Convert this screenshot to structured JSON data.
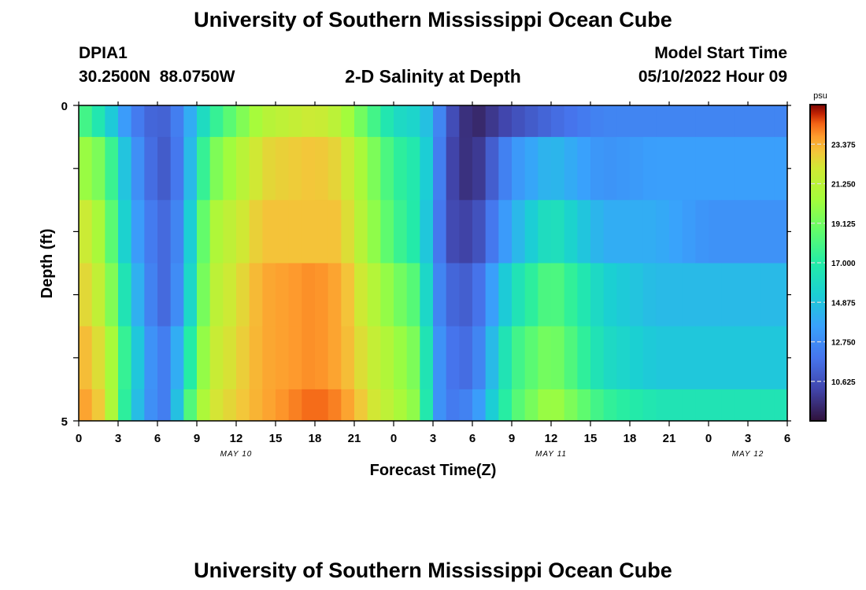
{
  "header": {
    "title": "University of Southern Mississippi Ocean Cube",
    "station_id": "DPIA1",
    "coords": "30.2500N  88.0750W",
    "plot_title": "2-D Salinity at Depth",
    "model_start_label": "Model Start Time",
    "model_start_value": "05/10/2022 Hour 09"
  },
  "footer": {
    "title": "University of Southern Mississippi Ocean Cube"
  },
  "colors": {
    "background": "#ffffff",
    "axis": "#000000",
    "tick_dash": "#dddddd"
  },
  "chart_data": {
    "type": "heatmap",
    "title": "2-D Salinity at Depth",
    "xlabel": "Forecast Time(Z)",
    "ylabel": "Depth (ft)",
    "y_ticks": [
      "0",
      "5"
    ],
    "y_range": [
      0,
      5
    ],
    "x_ticks": [
      "0",
      "3",
      "6",
      "9",
      "12",
      "15",
      "18",
      "21",
      "0",
      "3",
      "6",
      "9",
      "12",
      "15",
      "18",
      "21",
      "0",
      "3",
      "6"
    ],
    "x_range_hours": [
      0,
      54
    ],
    "date_labels": [
      {
        "hour": 12,
        "label": "MAY 10"
      },
      {
        "hour": 36,
        "label": "MAY 11"
      },
      {
        "hour": 51,
        "label": "MAY 12"
      }
    ],
    "colorbar": {
      "unit": "psu",
      "range": [
        8.5,
        25.5
      ],
      "ticks": [
        "23.375",
        "21.250",
        "19.125",
        "17.000",
        "14.875",
        "12.750",
        "10.625"
      ],
      "tick_values": [
        23.375,
        21.25,
        19.125,
        17.0,
        14.875,
        12.75,
        10.625
      ]
    },
    "time_step_hours": 1,
    "depth_levels": 5,
    "key_hours": [
      0,
      2,
      4,
      6,
      7,
      8,
      10,
      14,
      18,
      20,
      24,
      26,
      27,
      28,
      30,
      33,
      36,
      40,
      44,
      48,
      54
    ],
    "key_values": [
      [
        18.5,
        16.0,
        12.5,
        11.0,
        11.5,
        13.0,
        17.0,
        21.0,
        22.0,
        21.0,
        16.0,
        15.5,
        14.0,
        11.0,
        9.0,
        10.5,
        11.5,
        12.5,
        12.5,
        12.5,
        12.5
      ],
      [
        20.5,
        19.0,
        13.5,
        11.0,
        11.0,
        13.0,
        19.0,
        22.5,
        23.0,
        22.5,
        17.5,
        16.5,
        14.0,
        10.5,
        9.2,
        13.0,
        14.5,
        13.0,
        13.5,
        13.5,
        13.5
      ],
      [
        22.5,
        20.0,
        14.0,
        11.5,
        11.5,
        13.5,
        20.5,
        23.0,
        23.0,
        23.0,
        18.0,
        16.5,
        13.5,
        10.5,
        10.0,
        14.0,
        16.5,
        14.0,
        14.0,
        13.0,
        13.0
      ],
      [
        23.0,
        21.0,
        15.0,
        11.5,
        11.5,
        14.0,
        21.0,
        23.5,
        24.0,
        23.5,
        19.5,
        18.0,
        13.5,
        11.5,
        11.0,
        16.0,
        18.5,
        15.5,
        14.5,
        14.5,
        14.5
      ],
      [
        23.5,
        22.0,
        16.0,
        12.0,
        12.5,
        15.5,
        21.5,
        23.5,
        24.0,
        23.5,
        20.5,
        19.0,
        14.0,
        12.0,
        11.5,
        17.5,
        19.5,
        16.0,
        15.0,
        15.0,
        15.0
      ],
      [
        24.0,
        22.5,
        15.5,
        12.0,
        12.5,
        17.0,
        22.0,
        23.5,
        24.5,
        24.0,
        21.0,
        19.5,
        14.0,
        12.0,
        12.5,
        18.0,
        20.5,
        17.5,
        16.5,
        16.5,
        16.5
      ]
    ]
  }
}
